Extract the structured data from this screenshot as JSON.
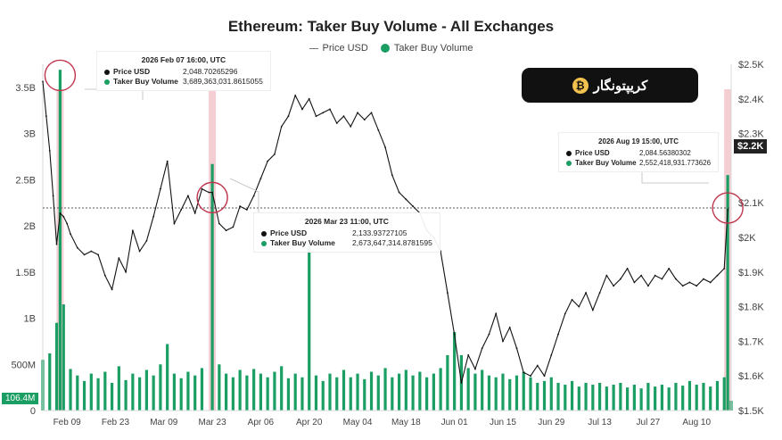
{
  "chart_data": {
    "type": "line",
    "title": "Ethereum: Taker Buy Volume - All Exchanges",
    "legend": [
      "Price USD",
      "Taker Buy Volume"
    ],
    "legend_placement": "top-center",
    "x_tick_labels": [
      "Feb 09",
      "Feb 23",
      "Mar 09",
      "Mar 23",
      "Apr 06",
      "Apr 20",
      "May 04",
      "May 18",
      "Jun 01",
      "Jun 15",
      "Jun 29",
      "Jul 13",
      "Jul 27",
      "Aug 10"
    ],
    "x_range": [
      "2026-02-02",
      "2026-08-20"
    ],
    "left_axis": {
      "label": "",
      "ticks": [
        "0",
        "500M",
        "1B",
        "1.5B",
        "2B",
        "2.5B",
        "3B",
        "3.5B"
      ],
      "ylim": [
        0,
        3.75
      ]
    },
    "right_axis": {
      "label": "",
      "ticks": [
        "$1.5K",
        "$1.6K",
        "$1.7K",
        "$1.8K",
        "$1.9K",
        "$2K",
        "$2.1K",
        "$2.2K",
        "$2.3K",
        "$2.4K",
        "$2.5K"
      ],
      "ylim": [
        1.5,
        2.5
      ]
    },
    "grid": false,
    "series": [
      {
        "name": "Price USD",
        "axis": "right",
        "unit": "K USD",
        "points": [
          [
            "2026-02-02",
            2.45
          ],
          [
            "2026-02-03",
            2.35
          ],
          [
            "2026-02-04",
            2.25
          ],
          [
            "2026-02-05",
            2.12
          ],
          [
            "2026-02-06",
            1.98
          ],
          [
            "2026-02-07",
            2.07
          ],
          [
            "2026-02-08",
            2.06
          ],
          [
            "2026-02-09",
            2.04
          ],
          [
            "2026-02-10",
            2.01
          ],
          [
            "2026-02-12",
            1.97
          ],
          [
            "2026-02-14",
            1.95
          ],
          [
            "2026-02-16",
            1.96
          ],
          [
            "2026-02-18",
            1.95
          ],
          [
            "2026-02-20",
            1.89
          ],
          [
            "2026-02-22",
            1.85
          ],
          [
            "2026-02-24",
            1.94
          ],
          [
            "2026-02-26",
            1.9
          ],
          [
            "2026-02-28",
            2.02
          ],
          [
            "2026-03-02",
            1.96
          ],
          [
            "2026-03-04",
            1.99
          ],
          [
            "2026-03-06",
            2.06
          ],
          [
            "2026-03-08",
            2.14
          ],
          [
            "2026-03-10",
            2.22
          ],
          [
            "2026-03-12",
            2.04
          ],
          [
            "2026-03-14",
            2.08
          ],
          [
            "2026-03-16",
            2.12
          ],
          [
            "2026-03-18",
            2.07
          ],
          [
            "2026-03-20",
            2.14
          ],
          [
            "2026-03-22",
            2.13
          ],
          [
            "2026-03-23",
            2.13
          ],
          [
            "2026-03-25",
            2.04
          ],
          [
            "2026-03-27",
            2.02
          ],
          [
            "2026-03-29",
            2.03
          ],
          [
            "2026-03-31",
            2.09
          ],
          [
            "2026-04-02",
            2.08
          ],
          [
            "2026-04-04",
            2.12
          ],
          [
            "2026-04-06",
            2.17
          ],
          [
            "2026-04-08",
            2.22
          ],
          [
            "2026-04-10",
            2.24
          ],
          [
            "2026-04-12",
            2.32
          ],
          [
            "2026-04-14",
            2.35
          ],
          [
            "2026-04-16",
            2.41
          ],
          [
            "2026-04-18",
            2.37
          ],
          [
            "2026-04-20",
            2.4
          ],
          [
            "2026-04-22",
            2.35
          ],
          [
            "2026-04-24",
            2.36
          ],
          [
            "2026-04-26",
            2.37
          ],
          [
            "2026-04-28",
            2.33
          ],
          [
            "2026-04-30",
            2.35
          ],
          [
            "2026-05-02",
            2.32
          ],
          [
            "2026-05-04",
            2.36
          ],
          [
            "2026-05-06",
            2.34
          ],
          [
            "2026-05-08",
            2.36
          ],
          [
            "2026-05-10",
            2.31
          ],
          [
            "2026-05-12",
            2.26
          ],
          [
            "2026-05-14",
            2.18
          ],
          [
            "2026-05-16",
            2.13
          ],
          [
            "2026-05-18",
            2.11
          ],
          [
            "2026-05-20",
            2.09
          ],
          [
            "2026-05-22",
            2.07
          ],
          [
            "2026-05-24",
            2.02
          ],
          [
            "2026-05-26",
            2.0
          ],
          [
            "2026-05-28",
            1.96
          ],
          [
            "2026-05-30",
            1.84
          ],
          [
            "2026-06-01",
            1.72
          ],
          [
            "2026-06-03",
            1.58
          ],
          [
            "2026-06-05",
            1.66
          ],
          [
            "2026-06-07",
            1.62
          ],
          [
            "2026-06-09",
            1.68
          ],
          [
            "2026-06-11",
            1.72
          ],
          [
            "2026-06-13",
            1.78
          ],
          [
            "2026-06-15",
            1.7
          ],
          [
            "2026-06-17",
            1.74
          ],
          [
            "2026-06-19",
            1.68
          ],
          [
            "2026-06-21",
            1.61
          ],
          [
            "2026-06-23",
            1.6
          ],
          [
            "2026-06-25",
            1.63
          ],
          [
            "2026-06-27",
            1.6
          ],
          [
            "2026-06-29",
            1.66
          ],
          [
            "2026-07-01",
            1.72
          ],
          [
            "2026-07-03",
            1.78
          ],
          [
            "2026-07-05",
            1.82
          ],
          [
            "2026-07-07",
            1.8
          ],
          [
            "2026-07-09",
            1.84
          ],
          [
            "2026-07-11",
            1.79
          ],
          [
            "2026-07-13",
            1.84
          ],
          [
            "2026-07-15",
            1.89
          ],
          [
            "2026-07-17",
            1.86
          ],
          [
            "2026-07-19",
            1.88
          ],
          [
            "2026-07-21",
            1.91
          ],
          [
            "2026-07-23",
            1.87
          ],
          [
            "2026-07-25",
            1.89
          ],
          [
            "2026-07-27",
            1.86
          ],
          [
            "2026-07-29",
            1.89
          ],
          [
            "2026-07-31",
            1.88
          ],
          [
            "2026-08-02",
            1.91
          ],
          [
            "2026-08-04",
            1.88
          ],
          [
            "2026-08-06",
            1.86
          ],
          [
            "2026-08-08",
            1.87
          ],
          [
            "2026-08-10",
            1.86
          ],
          [
            "2026-08-12",
            1.88
          ],
          [
            "2026-08-14",
            1.87
          ],
          [
            "2026-08-16",
            1.89
          ],
          [
            "2026-08-18",
            1.91
          ],
          [
            "2026-08-19",
            2.08
          ]
        ]
      },
      {
        "name": "Taker Buy Volume",
        "axis": "left",
        "unit": "B",
        "color": "#1a9e63",
        "points": [
          [
            "2026-02-02",
            0.55
          ],
          [
            "2026-02-04",
            0.62
          ],
          [
            "2026-02-06",
            0.95
          ],
          [
            "2026-02-07",
            3.69
          ],
          [
            "2026-02-08",
            1.15
          ],
          [
            "2026-02-10",
            0.45
          ],
          [
            "2026-02-12",
            0.38
          ],
          [
            "2026-02-14",
            0.32
          ],
          [
            "2026-02-16",
            0.4
          ],
          [
            "2026-02-18",
            0.35
          ],
          [
            "2026-02-20",
            0.42
          ],
          [
            "2026-02-22",
            0.3
          ],
          [
            "2026-02-24",
            0.48
          ],
          [
            "2026-02-26",
            0.33
          ],
          [
            "2026-02-28",
            0.4
          ],
          [
            "2026-03-02",
            0.36
          ],
          [
            "2026-03-04",
            0.44
          ],
          [
            "2026-03-06",
            0.38
          ],
          [
            "2026-03-08",
            0.5
          ],
          [
            "2026-03-10",
            0.72
          ],
          [
            "2026-03-12",
            0.4
          ],
          [
            "2026-03-14",
            0.35
          ],
          [
            "2026-03-16",
            0.42
          ],
          [
            "2026-03-18",
            0.38
          ],
          [
            "2026-03-20",
            0.46
          ],
          [
            "2026-03-23",
            2.67
          ],
          [
            "2026-03-25",
            0.5
          ],
          [
            "2026-03-27",
            0.4
          ],
          [
            "2026-03-29",
            0.36
          ],
          [
            "2026-03-31",
            0.44
          ],
          [
            "2026-04-02",
            0.38
          ],
          [
            "2026-04-04",
            0.45
          ],
          [
            "2026-04-06",
            0.4
          ],
          [
            "2026-04-08",
            0.36
          ],
          [
            "2026-04-10",
            0.42
          ],
          [
            "2026-04-12",
            0.48
          ],
          [
            "2026-04-14",
            0.35
          ],
          [
            "2026-04-16",
            0.4
          ],
          [
            "2026-04-18",
            0.36
          ],
          [
            "2026-04-20",
            1.78
          ],
          [
            "2026-04-22",
            0.38
          ],
          [
            "2026-04-24",
            0.32
          ],
          [
            "2026-04-26",
            0.4
          ],
          [
            "2026-04-28",
            0.36
          ],
          [
            "2026-04-30",
            0.44
          ],
          [
            "2026-05-02",
            0.36
          ],
          [
            "2026-05-04",
            0.4
          ],
          [
            "2026-05-06",
            0.34
          ],
          [
            "2026-05-08",
            0.42
          ],
          [
            "2026-05-10",
            0.38
          ],
          [
            "2026-05-12",
            0.46
          ],
          [
            "2026-05-14",
            0.36
          ],
          [
            "2026-05-16",
            0.4
          ],
          [
            "2026-05-18",
            0.44
          ],
          [
            "2026-05-20",
            0.38
          ],
          [
            "2026-05-22",
            0.42
          ],
          [
            "2026-05-24",
            0.36
          ],
          [
            "2026-05-26",
            0.4
          ],
          [
            "2026-05-28",
            0.46
          ],
          [
            "2026-05-30",
            0.6
          ],
          [
            "2026-06-01",
            0.85
          ],
          [
            "2026-06-03",
            0.6
          ],
          [
            "2026-06-05",
            0.46
          ],
          [
            "2026-06-07",
            0.4
          ],
          [
            "2026-06-09",
            0.44
          ],
          [
            "2026-06-11",
            0.38
          ],
          [
            "2026-06-13",
            0.36
          ],
          [
            "2026-06-15",
            0.4
          ],
          [
            "2026-06-17",
            0.34
          ],
          [
            "2026-06-19",
            0.38
          ],
          [
            "2026-06-21",
            0.42
          ],
          [
            "2026-06-23",
            0.36
          ],
          [
            "2026-06-25",
            0.3
          ],
          [
            "2026-06-27",
            0.32
          ],
          [
            "2026-06-29",
            0.36
          ],
          [
            "2026-07-01",
            0.3
          ],
          [
            "2026-07-03",
            0.28
          ],
          [
            "2026-07-05",
            0.32
          ],
          [
            "2026-07-07",
            0.26
          ],
          [
            "2026-07-09",
            0.3
          ],
          [
            "2026-07-11",
            0.28
          ],
          [
            "2026-07-13",
            0.3
          ],
          [
            "2026-07-15",
            0.26
          ],
          [
            "2026-07-17",
            0.28
          ],
          [
            "2026-07-19",
            0.3
          ],
          [
            "2026-07-21",
            0.25
          ],
          [
            "2026-07-23",
            0.28
          ],
          [
            "2026-07-25",
            0.24
          ],
          [
            "2026-07-27",
            0.3
          ],
          [
            "2026-07-29",
            0.26
          ],
          [
            "2026-07-31",
            0.28
          ],
          [
            "2026-08-02",
            0.25
          ],
          [
            "2026-08-04",
            0.3
          ],
          [
            "2026-08-06",
            0.27
          ],
          [
            "2026-08-08",
            0.32
          ],
          [
            "2026-08-10",
            0.28
          ],
          [
            "2026-08-12",
            0.3
          ],
          [
            "2026-08-14",
            0.26
          ],
          [
            "2026-08-16",
            0.32
          ],
          [
            "2026-08-18",
            0.36
          ],
          [
            "2026-08-19",
            2.55
          ],
          [
            "2026-08-20",
            0.106
          ]
        ]
      }
    ],
    "reference_line_price": 2.085,
    "highlight_dates": [
      "2026-02-07",
      "2026-03-23",
      "2026-08-19"
    ],
    "current_price_label": "$2.2K",
    "current_volume_label": "106.4M"
  },
  "tooltips": [
    {
      "header": "2026 Feb 07 16:00, UTC",
      "price_key": "Price USD",
      "price_val": "2,048.70265296",
      "vol_key": "Taker Buy Volume",
      "vol_val": "3,689,363,031.8615055"
    },
    {
      "header": "2026 Mar 23 11:00, UTC",
      "price_key": "Price USD",
      "price_val": "2,133.93727105",
      "vol_key": "Taker Buy Volume",
      "vol_val": "2,673,647,314.8781595"
    },
    {
      "header": "2026 Aug 19 15:00, UTC",
      "price_key": "Price USD",
      "price_val": "2,084.56380302",
      "vol_key": "Taker Buy Volume",
      "vol_val": "2,552,418,931.773626"
    }
  ],
  "badge": {
    "text": "کریپتونگار",
    "logo_glyph": "₿"
  },
  "colors": {
    "volume": "#1a9e63",
    "price": "#111111",
    "highlight": "#f3c6cc",
    "circle": "#c0354d",
    "refline": "#555555"
  }
}
